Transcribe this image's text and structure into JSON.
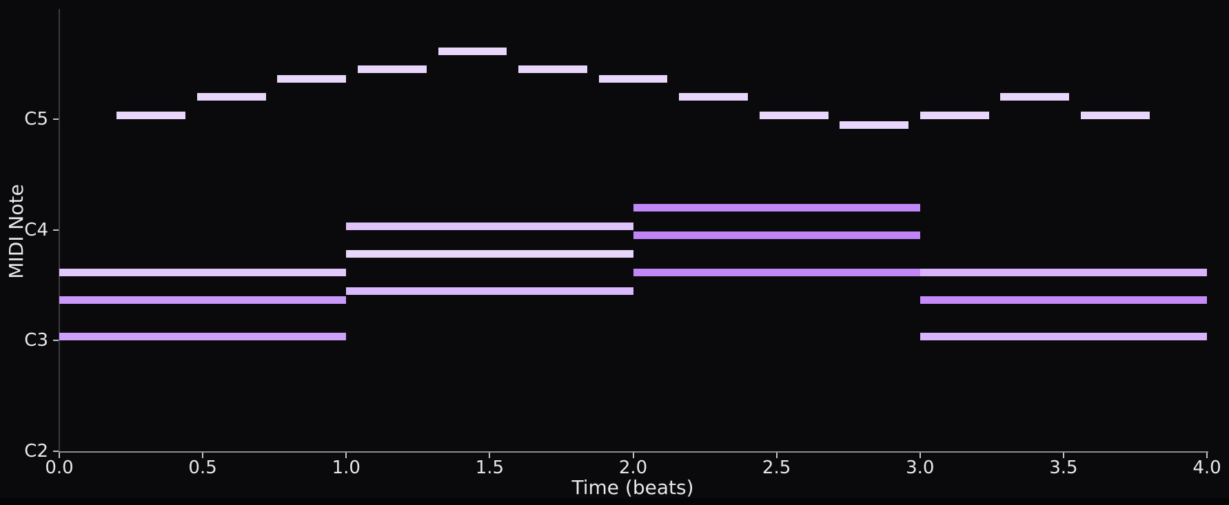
{
  "colors": {
    "figure_background": "#0a0a0c",
    "page_background": "#050507",
    "left_spine": "#3a3a40",
    "bottom_spine": "#8e8e93",
    "tick_mark": "#c2c2c8",
    "text": "#e8e8ec",
    "melody_note": "#e9d7fb"
  },
  "chart_data": {
    "type": "bar",
    "subtype": "piano-roll",
    "title": "",
    "xlabel": "Time (beats)",
    "ylabel": "MIDI Note",
    "grid": false,
    "legend": false,
    "xlim_beats": [
      0.0,
      4.0
    ],
    "ylim_midi": [
      36,
      84
    ],
    "x_ticks": [
      {
        "beat": 0.0,
        "label": "0.0"
      },
      {
        "beat": 0.5,
        "label": "0.5"
      },
      {
        "beat": 1.0,
        "label": "1.0"
      },
      {
        "beat": 1.5,
        "label": "1.5"
      },
      {
        "beat": 2.0,
        "label": "2.0"
      },
      {
        "beat": 2.5,
        "label": "2.5"
      },
      {
        "beat": 3.0,
        "label": "3.0"
      },
      {
        "beat": 3.5,
        "label": "3.5"
      },
      {
        "beat": 4.0,
        "label": "4.0"
      }
    ],
    "y_ticks": [
      {
        "midi": 36,
        "label": "C2"
      },
      {
        "midi": 48,
        "label": "C3"
      },
      {
        "midi": 60,
        "label": "C4"
      },
      {
        "midi": 72,
        "label": "C5"
      }
    ],
    "notes": [
      {
        "pitch": "C3",
        "midi": 48,
        "start": 0.0,
        "duration": 1.0,
        "color": "#cda1fa"
      },
      {
        "pitch": "E3",
        "midi": 52,
        "start": 0.0,
        "duration": 1.0,
        "color": "#c99af9"
      },
      {
        "pitch": "G3",
        "midi": 55,
        "start": 0.0,
        "duration": 1.0,
        "color": "#e3c8fb"
      },
      {
        "pitch": "F3",
        "midi": 53,
        "start": 1.0,
        "duration": 1.0,
        "color": "#d9b8fb"
      },
      {
        "pitch": "A3",
        "midi": 57,
        "start": 1.0,
        "duration": 1.0,
        "color": "#e9d6fc"
      },
      {
        "pitch": "C4",
        "midi": 60,
        "start": 1.0,
        "duration": 1.0,
        "color": "#e0c3fa"
      },
      {
        "pitch": "G3",
        "midi": 55,
        "start": 2.0,
        "duration": 1.0,
        "color": "#c187f7"
      },
      {
        "pitch": "B3",
        "midi": 59,
        "start": 2.0,
        "duration": 1.0,
        "color": "#c084f7"
      },
      {
        "pitch": "D4",
        "midi": 62,
        "start": 2.0,
        "duration": 1.0,
        "color": "#bf87f7"
      },
      {
        "pitch": "C3",
        "midi": 48,
        "start": 3.0,
        "duration": 1.0,
        "color": "#d9b3fb"
      },
      {
        "pitch": "E3",
        "midi": 52,
        "start": 3.0,
        "duration": 1.0,
        "color": "#c78bf9"
      },
      {
        "pitch": "G3",
        "midi": 55,
        "start": 3.0,
        "duration": 1.0,
        "color": "#d9b4fb"
      },
      {
        "pitch": "C5",
        "midi": 72,
        "start": 0.2,
        "duration": 0.24,
        "color": "#e9d7fb"
      },
      {
        "pitch": "D5",
        "midi": 74,
        "start": 0.48,
        "duration": 0.24,
        "color": "#e9d7fb"
      },
      {
        "pitch": "E5",
        "midi": 76,
        "start": 0.76,
        "duration": 0.24,
        "color": "#e9d7fb"
      },
      {
        "pitch": "F5",
        "midi": 77,
        "start": 1.04,
        "duration": 0.24,
        "color": "#e9d7fb"
      },
      {
        "pitch": "G5",
        "midi": 79,
        "start": 1.32,
        "duration": 0.24,
        "color": "#e9d7fb"
      },
      {
        "pitch": "F5",
        "midi": 77,
        "start": 1.6,
        "duration": 0.24,
        "color": "#e9d7fb"
      },
      {
        "pitch": "E5",
        "midi": 76,
        "start": 1.88,
        "duration": 0.24,
        "color": "#e9d7fb"
      },
      {
        "pitch": "D5",
        "midi": 74,
        "start": 2.16,
        "duration": 0.24,
        "color": "#e9d7fb"
      },
      {
        "pitch": "C5",
        "midi": 72,
        "start": 2.44,
        "duration": 0.24,
        "color": "#e9d7fb"
      },
      {
        "pitch": "B4",
        "midi": 71,
        "start": 2.72,
        "duration": 0.24,
        "color": "#e9d7fb"
      },
      {
        "pitch": "C5",
        "midi": 72,
        "start": 3.0,
        "duration": 0.24,
        "color": "#e9d7fb"
      },
      {
        "pitch": "D5",
        "midi": 74,
        "start": 3.28,
        "duration": 0.24,
        "color": "#e9d7fb"
      },
      {
        "pitch": "C5",
        "midi": 72,
        "start": 3.56,
        "duration": 0.24,
        "color": "#e9d7fb"
      }
    ]
  }
}
